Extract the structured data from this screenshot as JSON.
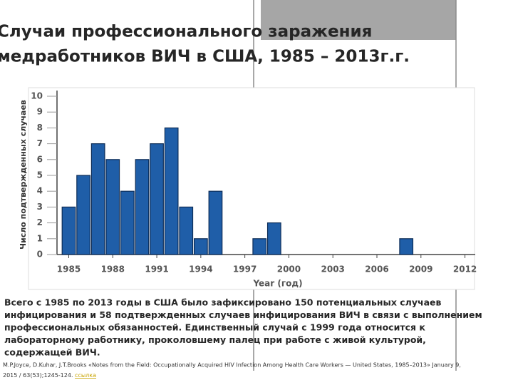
{
  "slide": {
    "title_lines": [
      "Случаи профессионального заражения",
      "медработников ВИЧ в США, 1985 – 2013г.г."
    ],
    "body_lines": [
      "Всего с 1985 по 2013 годы в США было зафиксировано 150 потенциальных случаев",
      "инфицирования и 58 подтвержденных случаев инфицирования ВИЧ в связи с выполнением",
      "профессиональных обязанностей. Единственный случай с 1999 года относится к",
      "лабораторному работнику, проколовшему палец при работе с живой культурой,",
      "содержащей ВИЧ."
    ],
    "citation_lines": [
      "M.P.Joyce, D.Kuhar, J.T.Brooks «Notes from the Field: Occupationally Acquired HIV Infection Among Health Care Workers — United States, 1985–2013» January 9,",
      "2015 / 63(53);1245-124."
    ],
    "citation_link": "ссылка"
  },
  "chart_data": {
    "type": "bar",
    "x": [
      1985,
      1986,
      1987,
      1988,
      1989,
      1990,
      1991,
      1992,
      1993,
      1994,
      1995,
      1996,
      1997,
      1998,
      1999,
      2000,
      2001,
      2002,
      2003,
      2004,
      2005,
      2006,
      2007,
      2008,
      2009,
      2010,
      2011,
      2012,
      2013
    ],
    "values": [
      3,
      5,
      7,
      6,
      4,
      6,
      7,
      8,
      3,
      1,
      4,
      0,
      0,
      1,
      2,
      0,
      0,
      0,
      0,
      0,
      0,
      0,
      0,
      1,
      0,
      0,
      0,
      0,
      0
    ],
    "color": "#1f5ea8",
    "x_label": "Year (год)",
    "y_label": "Число подтвержденных случаев",
    "xlim": [
      1984.2,
      2012.7
    ],
    "xticks": [
      1985,
      1988,
      1991,
      1994,
      1997,
      2000,
      2003,
      2006,
      2009,
      2012
    ],
    "ylim": [
      0,
      10
    ],
    "yticks": [
      0,
      1,
      2,
      3,
      4,
      5,
      6,
      7,
      8,
      9,
      10
    ]
  }
}
